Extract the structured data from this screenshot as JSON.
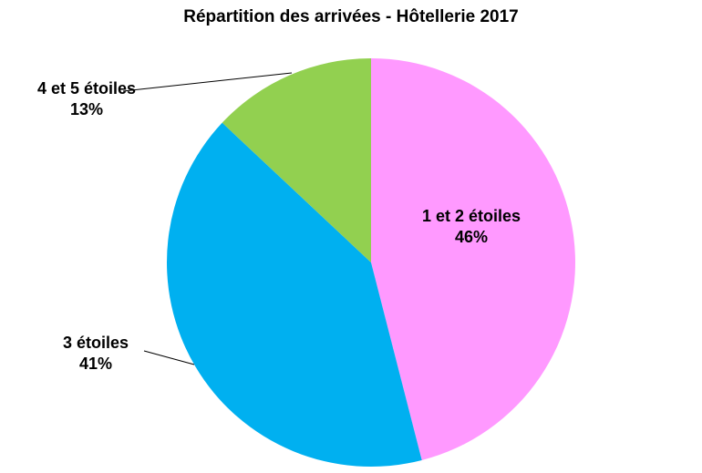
{
  "chart_data": {
    "type": "pie",
    "title": "Répartition des arrivées - Hôtellerie 2017",
    "categories": [
      "1 et 2 étoiles",
      "3 étoiles",
      "4 et 5 étoiles"
    ],
    "values": [
      46,
      41,
      13
    ],
    "value_labels": [
      "46%",
      "41%",
      "13%"
    ],
    "colors": [
      "#ff99ff",
      "#00b0f0",
      "#92d050"
    ]
  }
}
